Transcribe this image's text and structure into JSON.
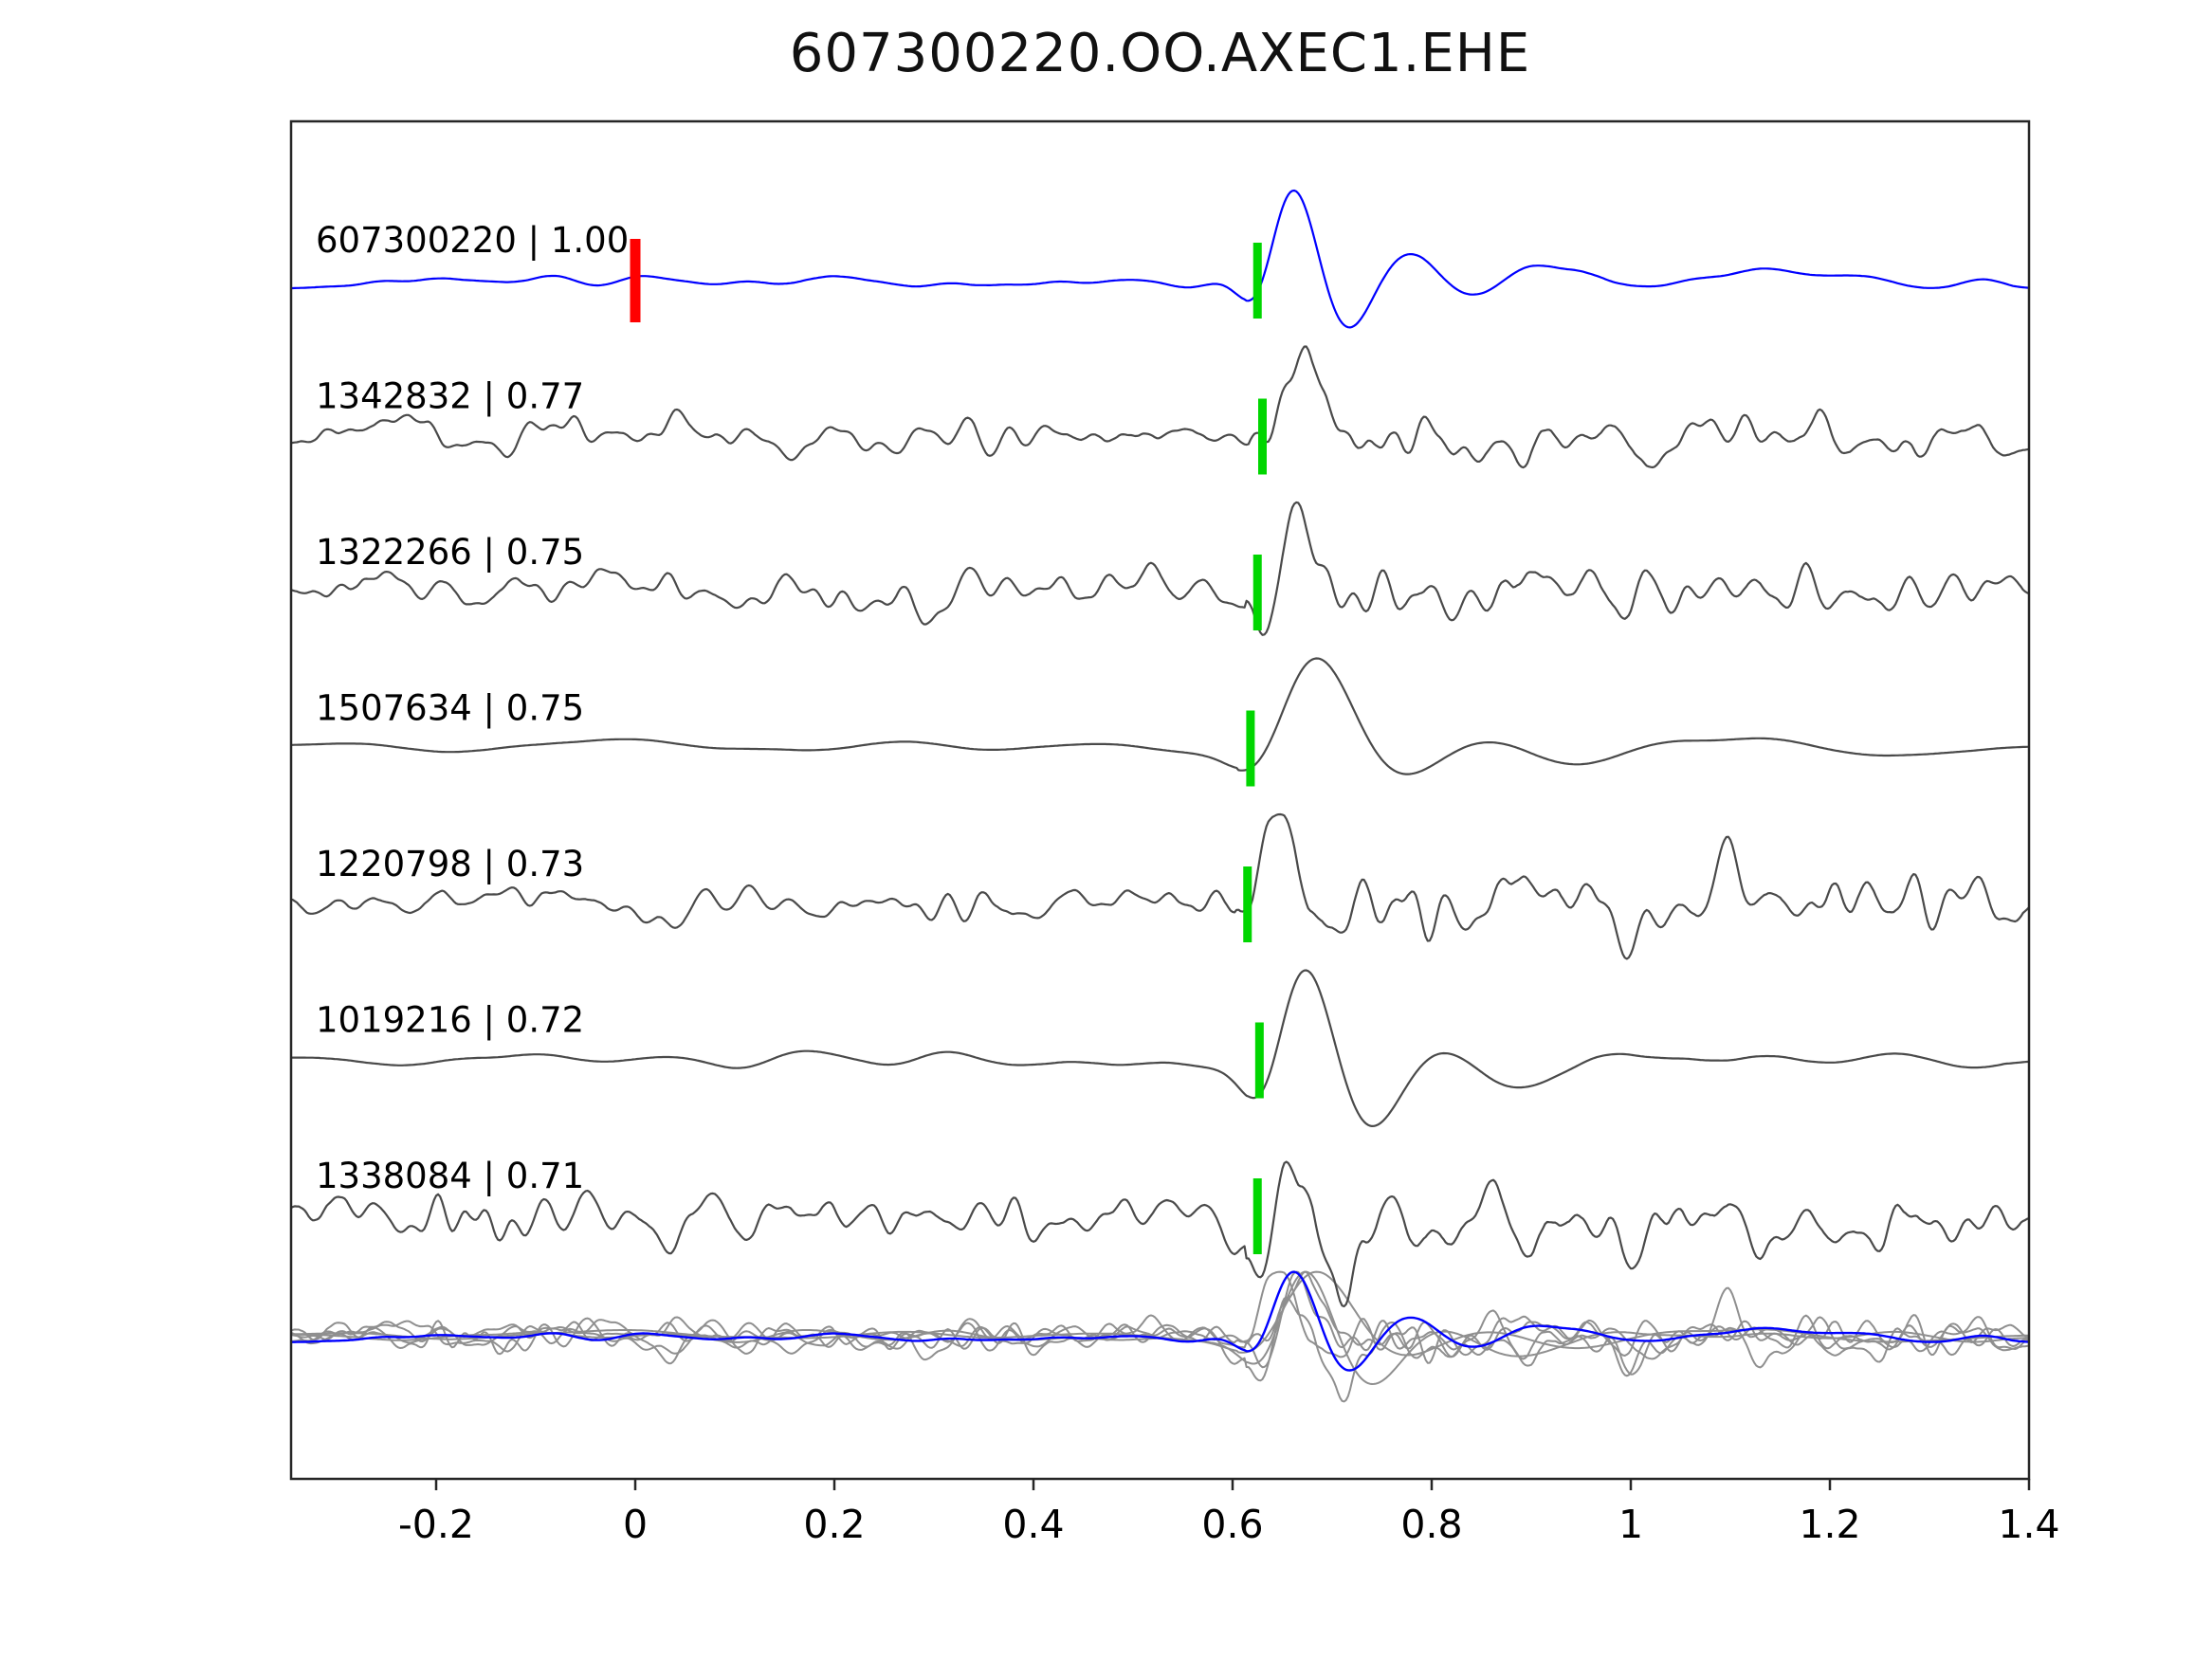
{
  "figure": {
    "background": "#ffffff"
  },
  "chart_data": {
    "type": "line",
    "title": "607300220.OO.AXEC1.EHE",
    "subtitle": "",
    "xlabel": "",
    "ylabel": "",
    "xlim": [
      -0.346,
      1.4
    ],
    "x_ticks": [
      -0.2,
      0,
      0.2,
      0.4,
      0.6,
      0.8,
      1,
      1.2,
      1.4
    ],
    "x_tick_labels": [
      "-0.2",
      "0",
      "0.2",
      "0.4",
      "0.6",
      "0.8",
      "1",
      "1.2",
      "1.4"
    ],
    "grid": false,
    "legend": "none",
    "description": "Seismic template-matching figure: reference waveform 607300220 (blue) above six matched detection waveforms (dark gray), each row amplitude-normalized. Green vertical bars mark the aligned pick near t=0.62; a red vertical bar marks t=0 on the reference trace. The bottom row overlays all traces (gray) with the reference trace in blue.",
    "colors": {
      "reference_trace": "#0000ff",
      "match_trace": "#4a4a4a",
      "overlay_gray": "#8f8f8f",
      "pick_marker": "#00d600",
      "zero_time_marker": "#ff0000",
      "axis": "#262626",
      "text": "#000000"
    },
    "traces": [
      {
        "label": "607300220 | 1.00",
        "event_id": "607300220",
        "correlation": 1.0,
        "role": "reference",
        "pick_time": 0.625,
        "zero_marker_time": 0.0,
        "render_style": {
          "seed": 101,
          "noise": 0.07,
          "smooth": 8,
          "signal": 1.0,
          "freq": 1.0,
          "coda": 0.25
        }
      },
      {
        "label": "1342832 | 0.77",
        "event_id": "1342832",
        "correlation": 0.77,
        "role": "match",
        "pick_time": 0.63,
        "render_style": {
          "seed": 202,
          "noise": 0.34,
          "smooth": 3,
          "signal": 0.95,
          "freq": 1.0,
          "coda": 0.9
        }
      },
      {
        "label": "1322266 | 0.75",
        "event_id": "1322266",
        "correlation": 0.75,
        "role": "match",
        "pick_time": 0.625,
        "render_style": {
          "seed": 303,
          "noise": 0.36,
          "smooth": 3,
          "signal": 0.9,
          "freq": 1.05,
          "coda": 0.95
        }
      },
      {
        "label": "1507634 | 0.75",
        "event_id": "1507634",
        "correlation": 0.75,
        "role": "match",
        "pick_time": 0.618,
        "render_style": {
          "seed": 404,
          "noise": 0.1,
          "smooth": 16,
          "signal": 1.0,
          "freq": 0.65,
          "coda": 0.5
        }
      },
      {
        "label": "1220798 | 0.73",
        "event_id": "1220798",
        "correlation": 0.73,
        "role": "match",
        "pick_time": 0.615,
        "render_style": {
          "seed": 505,
          "noise": 0.4,
          "smooth": 3,
          "signal": 0.9,
          "freq": 1.1,
          "coda": 1.2
        }
      },
      {
        "label": "1019216 | 0.72",
        "event_id": "1019216",
        "correlation": 0.72,
        "role": "match",
        "pick_time": 0.627,
        "render_style": {
          "seed": 606,
          "noise": 0.08,
          "smooth": 12,
          "signal": 1.0,
          "freq": 0.85,
          "coda": 0.4
        }
      },
      {
        "label": "1338084 | 0.71",
        "event_id": "1338084",
        "correlation": 0.71,
        "role": "match",
        "pick_time": 0.625,
        "render_style": {
          "seed": 707,
          "noise": 0.36,
          "smooth": 3,
          "signal": 0.9,
          "freq": 1.0,
          "coda": 0.9
        }
      }
    ],
    "overlay_row": {
      "includes": "all traces superimposed",
      "scale": 0.72
    }
  }
}
